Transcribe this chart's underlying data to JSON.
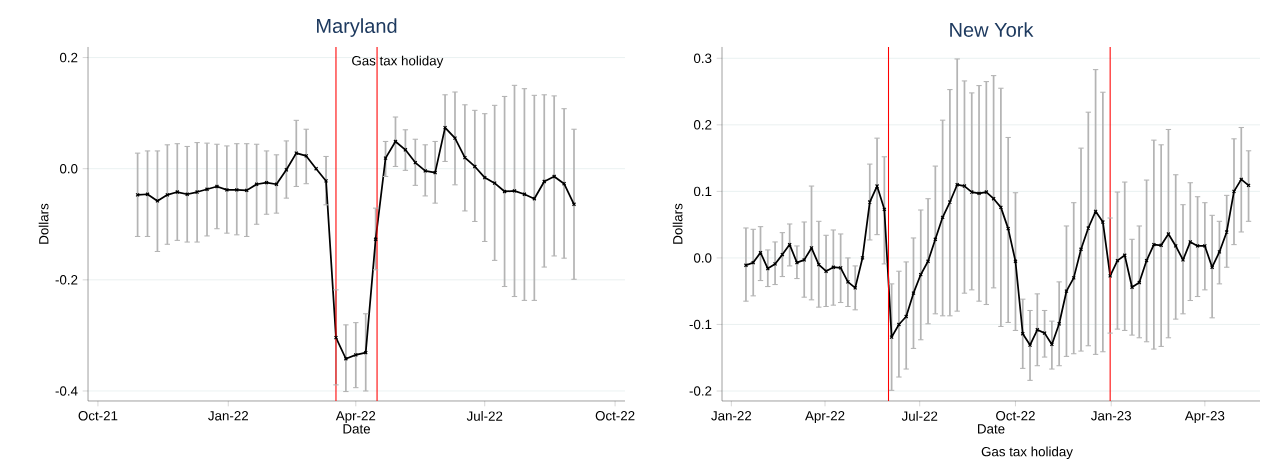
{
  "chart_data": [
    {
      "type": "line",
      "title": "Maryland",
      "xlabel": "Date",
      "ylabel": "Dollars",
      "grid": "y",
      "marker": "cross",
      "x": [
        "2021-10-29",
        "2021-11-05",
        "2021-11-12",
        "2021-11-19",
        "2021-11-26",
        "2021-12-03",
        "2021-12-10",
        "2021-12-17",
        "2021-12-24",
        "2021-12-31",
        "2022-01-07",
        "2022-01-14",
        "2022-01-21",
        "2022-01-28",
        "2022-02-04",
        "2022-02-11",
        "2022-02-18",
        "2022-02-25",
        "2022-03-04",
        "2022-03-11",
        "2022-03-18",
        "2022-03-25",
        "2022-04-01",
        "2022-04-08",
        "2022-04-15",
        "2022-04-22",
        "2022-04-29",
        "2022-05-06",
        "2022-05-13",
        "2022-05-20",
        "2022-05-27",
        "2022-06-03",
        "2022-06-10",
        "2022-06-17",
        "2022-06-24",
        "2022-07-01",
        "2022-07-08",
        "2022-07-15",
        "2022-07-22",
        "2022-07-29",
        "2022-08-05",
        "2022-08-12",
        "2022-08-19",
        "2022-08-26",
        "2022-09-02"
      ],
      "series": [
        {
          "color": "#000000",
          "values": [
            -0.047,
            -0.046,
            -0.058,
            -0.047,
            -0.042,
            -0.046,
            -0.042,
            -0.037,
            -0.032,
            -0.038,
            -0.038,
            -0.039,
            -0.028,
            -0.025,
            -0.028,
            -0.002,
            0.028,
            0.023,
            0,
            -0.022,
            -0.304,
            -0.342,
            -0.335,
            -0.331,
            -0.127,
            0.019,
            0.049,
            0.034,
            0.011,
            -0.004,
            -0.007,
            0.074,
            0.055,
            0.02,
            0.004,
            -0.016,
            -0.026,
            -0.041,
            -0.04,
            -0.046,
            -0.054,
            -0.023,
            -0.014,
            -0.027,
            -0.064
          ],
          "errors": [
            [
              -0.122,
              0.028
            ],
            [
              -0.122,
              0.032
            ],
            [
              -0.149,
              0.032
            ],
            [
              -0.136,
              0.043
            ],
            [
              -0.129,
              0.045
            ],
            [
              -0.132,
              0.04
            ],
            [
              -0.132,
              0.047
            ],
            [
              -0.121,
              0.046
            ],
            [
              -0.108,
              0.044
            ],
            [
              -0.116,
              0.041
            ],
            [
              -0.119,
              0.045
            ],
            [
              -0.122,
              0.045
            ],
            [
              -0.1,
              0.044
            ],
            [
              -0.082,
              0.032
            ],
            [
              -0.08,
              0.025
            ],
            [
              -0.053,
              0.05
            ],
            [
              -0.032,
              0.087
            ],
            [
              -0.027,
              0.071
            ],
            null,
            [
              -0.065,
              0.022
            ],
            [
              -0.389,
              -0.218
            ],
            [
              -0.401,
              -0.281
            ],
            [
              -0.394,
              -0.277
            ],
            [
              -0.4,
              -0.261
            ],
            [
              -0.182,
              -0.071
            ],
            [
              -0.014,
              0.049
            ],
            [
              0.004,
              0.093
            ],
            [
              -0.003,
              0.07
            ],
            [
              -0.03,
              0.053
            ],
            [
              -0.049,
              0.043
            ],
            [
              -0.062,
              0.049
            ],
            [
              0.013,
              0.133
            ],
            [
              -0.029,
              0.138
            ],
            [
              -0.076,
              0.115
            ],
            [
              -0.095,
              0.105
            ],
            [
              -0.131,
              0.099
            ],
            [
              -0.165,
              0.114
            ],
            [
              -0.212,
              0.13
            ],
            [
              -0.23,
              0.15
            ],
            [
              -0.237,
              0.144
            ],
            [
              -0.237,
              0.132
            ],
            [
              -0.177,
              0.133
            ],
            [
              -0.157,
              0.131
            ],
            [
              -0.161,
              0.108
            ],
            [
              -0.199,
              0.071
            ]
          ]
        }
      ],
      "xlim": [
        "2021-09-24",
        "2022-10-08"
      ],
      "ylim": [
        -0.418,
        0.219
      ],
      "xticks": [
        {
          "value": "2021-10-01",
          "label": "Oct-21"
        },
        {
          "value": "2022-01-01",
          "label": "Jan-22"
        },
        {
          "value": "2022-04-01",
          "label": "Apr-22"
        },
        {
          "value": "2022-07-01",
          "label": "Jul-22"
        },
        {
          "value": "2022-10-01",
          "label": "Oct-22"
        }
      ],
      "yticks": [
        {
          "value": -0.4,
          "label": "-0.4"
        },
        {
          "value": -0.2,
          "label": "-0.2"
        },
        {
          "value": 0,
          "label": "0.0"
        },
        {
          "value": 0.2,
          "label": "0.2"
        }
      ],
      "ref_lines": [
        {
          "axis": "x",
          "value": "2022-03-18",
          "color": "#ff0000"
        },
        {
          "axis": "x",
          "value": "2022-04-16",
          "color": "#ff0000"
        }
      ],
      "annotations": [
        "Gas tax holiday"
      ]
    },
    {
      "type": "line",
      "title": "New York",
      "xlabel": "Date",
      "ylabel": "Dollars",
      "grid": "y",
      "marker": "cross",
      "x": [
        "2022-01-15",
        "2022-01-22",
        "2022-01-29",
        "2022-02-05",
        "2022-02-12",
        "2022-02-19",
        "2022-02-26",
        "2022-03-05",
        "2022-03-12",
        "2022-03-19",
        "2022-03-26",
        "2022-04-02",
        "2022-04-09",
        "2022-04-16",
        "2022-04-23",
        "2022-04-30",
        "2022-05-07",
        "2022-05-14",
        "2022-05-21",
        "2022-05-28",
        "2022-06-04",
        "2022-06-11",
        "2022-06-18",
        "2022-06-25",
        "2022-07-02",
        "2022-07-09",
        "2022-07-16",
        "2022-07-23",
        "2022-07-30",
        "2022-08-06",
        "2022-08-13",
        "2022-08-20",
        "2022-08-27",
        "2022-09-03",
        "2022-09-10",
        "2022-09-17",
        "2022-09-24",
        "2022-10-01",
        "2022-10-08",
        "2022-10-15",
        "2022-10-22",
        "2022-10-29",
        "2022-11-05",
        "2022-11-12",
        "2022-11-19",
        "2022-11-26",
        "2022-12-03",
        "2022-12-10",
        "2022-12-17",
        "2022-12-24",
        "2022-12-31",
        "2023-01-07",
        "2023-01-14",
        "2023-01-21",
        "2023-01-28",
        "2023-02-04",
        "2023-02-11",
        "2023-02-18",
        "2023-02-25",
        "2023-03-04",
        "2023-03-11",
        "2023-03-18",
        "2023-03-25",
        "2023-04-01",
        "2023-04-08",
        "2023-04-15",
        "2023-04-22",
        "2023-04-29",
        "2023-05-06",
        "2023-05-13"
      ],
      "series": [
        {
          "color": "#000000",
          "values": [
            -0.011,
            -0.007,
            0.008,
            -0.016,
            -0.009,
            0.005,
            0.02,
            -0.007,
            -0.003,
            0.015,
            -0.01,
            -0.02,
            -0.014,
            -0.015,
            -0.036,
            -0.045,
            0,
            0.084,
            0.108,
            0.073,
            -0.119,
            -0.1,
            -0.088,
            -0.053,
            -0.025,
            -0.005,
            0.028,
            0.061,
            0.084,
            0.11,
            0.108,
            0.099,
            0.097,
            0.099,
            0.089,
            0.076,
            0.044,
            -0.005,
            -0.114,
            -0.131,
            -0.108,
            -0.113,
            -0.13,
            -0.099,
            -0.05,
            -0.03,
            0.013,
            0.045,
            0.07,
            0.054,
            -0.027,
            -0.004,
            0.004,
            -0.044,
            -0.037,
            -0.004,
            0.02,
            0.019,
            0.036,
            0.018,
            -0.003,
            0.024,
            0.018,
            0.018,
            -0.014,
            0.009,
            0.039,
            0.1,
            0.118,
            0.109
          ],
          "errors": [
            [
              -0.065,
              0.045
            ],
            [
              -0.057,
              0.043
            ],
            [
              -0.034,
              0.047
            ],
            [
              -0.043,
              0.012
            ],
            [
              -0.04,
              0.024
            ],
            [
              -0.028,
              0.038
            ],
            [
              -0.012,
              0.051
            ],
            [
              -0.031,
              0.018
            ],
            [
              -0.059,
              0.054
            ],
            [
              -0.063,
              0.108
            ],
            [
              -0.074,
              0.055
            ],
            [
              -0.073,
              0.034
            ],
            [
              -0.071,
              0.042
            ],
            [
              -0.067,
              0.036
            ],
            [
              -0.073,
              0.0
            ],
            [
              -0.078,
              -0.012
            ],
            null,
            [
              0.027,
              0.141
            ],
            [
              0.035,
              0.18
            ],
            [
              -0.009,
              0.152
            ],
            [
              -0.199,
              -0.039
            ],
            [
              -0.179,
              -0.02
            ],
            [
              -0.167,
              -0.006
            ],
            [
              -0.136,
              0.03
            ],
            [
              -0.123,
              0.072
            ],
            [
              -0.099,
              0.089
            ],
            [
              -0.084,
              0.138
            ],
            [
              -0.087,
              0.207
            ],
            [
              -0.087,
              0.253
            ],
            [
              -0.08,
              0.299
            ],
            [
              -0.053,
              0.266
            ],
            [
              -0.048,
              0.248
            ],
            [
              -0.065,
              0.259
            ],
            [
              -0.07,
              0.265
            ],
            [
              -0.045,
              0.274
            ],
            [
              -0.103,
              0.255
            ],
            [
              -0.097,
              0.181
            ],
            [
              -0.109,
              0.098
            ],
            [
              -0.166,
              -0.062
            ],
            [
              -0.184,
              -0.079
            ],
            [
              -0.162,
              -0.054
            ],
            [
              -0.149,
              -0.079
            ],
            [
              -0.167,
              -0.095
            ],
            [
              -0.162,
              -0.036
            ],
            [
              -0.148,
              0.048
            ],
            [
              -0.144,
              0.083
            ],
            [
              -0.14,
              0.165
            ],
            [
              -0.132,
              0.219
            ],
            [
              -0.145,
              0.283
            ],
            [
              -0.141,
              0.249
            ],
            [
              -0.113,
              0.06
            ],
            [
              -0.107,
              0.099
            ],
            [
              -0.109,
              0.114
            ],
            [
              -0.116,
              0.028
            ],
            [
              -0.12,
              0.048
            ],
            [
              -0.126,
              0.117
            ],
            [
              -0.137,
              0.177
            ],
            [
              -0.133,
              0.17
            ],
            [
              -0.12,
              0.193
            ],
            [
              -0.092,
              0.125
            ],
            [
              -0.084,
              0.08
            ],
            [
              -0.064,
              0.113
            ],
            [
              -0.058,
              0.092
            ],
            [
              -0.048,
              0.083
            ],
            [
              -0.09,
              0.064
            ],
            [
              -0.039,
              0.055
            ],
            [
              -0.014,
              0.094
            ],
            [
              0.02,
              0.179
            ],
            [
              0.039,
              0.196
            ],
            [
              0.055,
              0.161
            ]
          ]
        }
      ],
      "xlim": [
        "2021-12-23",
        "2023-05-24"
      ],
      "ylim": [
        -0.215,
        0.317
      ],
      "xticks": [
        {
          "value": "2022-01-01",
          "label": "Jan-22"
        },
        {
          "value": "2022-04-01",
          "label": "Apr-22"
        },
        {
          "value": "2022-07-01",
          "label": "Jul-22"
        },
        {
          "value": "2022-10-01",
          "label": "Oct-22"
        },
        {
          "value": "2023-01-01",
          "label": "Jan-23"
        },
        {
          "value": "2023-04-01",
          "label": "Apr-23"
        }
      ],
      "yticks": [
        {
          "value": -0.2,
          "label": "-0.2"
        },
        {
          "value": -0.1,
          "label": "-0.1"
        },
        {
          "value": 0,
          "label": "0.0"
        },
        {
          "value": 0.1,
          "label": "0.1"
        },
        {
          "value": 0.2,
          "label": "0.2"
        },
        {
          "value": 0.3,
          "label": "0.3"
        }
      ],
      "ref_lines": [
        {
          "axis": "x",
          "value": "2022-06-01",
          "color": "#ff0000"
        },
        {
          "axis": "x",
          "value": "2022-12-31",
          "color": "#ff0000"
        }
      ],
      "annotations": [
        "Gas tax holiday"
      ]
    }
  ]
}
